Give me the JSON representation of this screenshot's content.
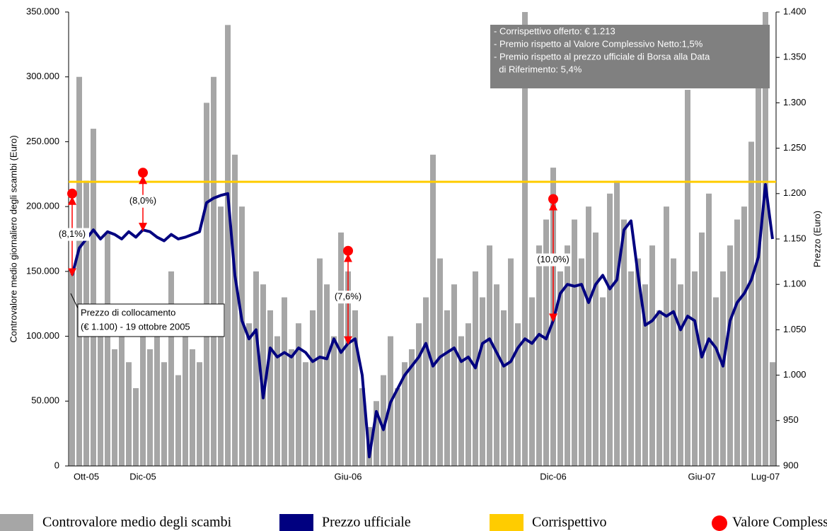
{
  "chart_data": {
    "type": "bar_line",
    "ylabel": "Controvalore medio giornaliero degli scambi (Euro)",
    "y2label": "Prezzo (Euro)",
    "categories": [
      null,
      null,
      "Ott-05",
      null,
      null,
      null,
      null,
      null,
      null,
      null,
      "Dic-05",
      null,
      null,
      null,
      null,
      null,
      null,
      null,
      null,
      null,
      null,
      null,
      null,
      null,
      null,
      null,
      null,
      null,
      null,
      null,
      null,
      null,
      null,
      null,
      null,
      null,
      null,
      null,
      null,
      "Giu-06",
      null,
      null,
      null,
      null,
      null,
      null,
      null,
      null,
      null,
      null,
      null,
      null,
      null,
      null,
      null,
      null,
      null,
      null,
      null,
      null,
      null,
      null,
      null,
      null,
      null,
      null,
      null,
      null,
      "Dic-06",
      null,
      null,
      null,
      null,
      null,
      null,
      null,
      null,
      null,
      null,
      null,
      null,
      null,
      null,
      null,
      null,
      null,
      null,
      null,
      null,
      "Giu-07",
      null,
      null,
      null,
      null,
      null,
      null,
      null,
      null,
      "Lug-07",
      null
    ],
    "series": [
      {
        "name": "Controvalore medio degli scambi",
        "color": "#a6a6a6",
        "kind": "bar",
        "values": [
          150000,
          300000,
          220000,
          260000,
          120000,
          180000,
          90000,
          100000,
          80000,
          60000,
          120000,
          90000,
          100000,
          80000,
          150000,
          70000,
          110000,
          90000,
          80000,
          280000,
          300000,
          200000,
          340000,
          240000,
          200000,
          110000,
          150000,
          140000,
          120000,
          100000,
          130000,
          90000,
          110000,
          80000,
          120000,
          160000,
          140000,
          100000,
          180000,
          150000,
          120000,
          60000,
          30000,
          50000,
          70000,
          100000,
          60000,
          80000,
          90000,
          110000,
          130000,
          240000,
          160000,
          120000,
          140000,
          100000,
          110000,
          150000,
          130000,
          170000,
          140000,
          120000,
          160000,
          110000,
          350000,
          130000,
          170000,
          190000,
          230000,
          150000,
          170000,
          190000,
          160000,
          200000,
          180000,
          130000,
          210000,
          220000,
          190000,
          150000,
          160000,
          140000,
          170000,
          120000,
          200000,
          160000,
          140000,
          290000,
          150000,
          180000,
          210000,
          130000,
          150000,
          170000,
          190000,
          200000,
          250000,
          300000,
          350000,
          80000
        ]
      },
      {
        "name": "Prezzo ufficiale",
        "color": "#000080",
        "kind": "line",
        "axis": "y2",
        "values": [
          1110,
          1140,
          1150,
          1160,
          1150,
          1158,
          1155,
          1150,
          1158,
          1152,
          1160,
          1158,
          1152,
          1148,
          1155,
          1150,
          1152,
          1155,
          1158,
          1190,
          1195,
          1198,
          1200,
          1110,
          1060,
          1040,
          1050,
          975,
          1030,
          1020,
          1025,
          1020,
          1030,
          1025,
          1015,
          1020,
          1018,
          1040,
          1025,
          1035,
          1040,
          1000,
          910,
          960,
          940,
          970,
          985,
          1000,
          1010,
          1020,
          1035,
          1010,
          1020,
          1025,
          1030,
          1015,
          1020,
          1008,
          1035,
          1040,
          1025,
          1010,
          1015,
          1030,
          1040,
          1035,
          1045,
          1040,
          1060,
          1090,
          1100,
          1098,
          1100,
          1080,
          1100,
          1110,
          1095,
          1105,
          1160,
          1170,
          1110,
          1055,
          1060,
          1070,
          1065,
          1070,
          1050,
          1065,
          1060,
          1020,
          1040,
          1030,
          1010,
          1060,
          1080,
          1090,
          1105,
          1130,
          1210,
          1150
        ]
      },
      {
        "name": "Corrispettivo",
        "color": "#ffcc00",
        "kind": "hline",
        "axis": "y2",
        "value": 1213
      }
    ],
    "vcn": {
      "name": "Valore Complessivo Netto",
      "color": "#ff0000",
      "axis": "y2",
      "points": [
        {
          "index": 0,
          "value": 1200,
          "label": "(8,1%)"
        },
        {
          "index": 10,
          "value": 1223,
          "label": "(8,0%)"
        },
        {
          "index": 39,
          "value": 1137,
          "label": "(7,6%)"
        },
        {
          "index": 68,
          "value": 1194,
          "label": "(10,0%)"
        }
      ]
    },
    "ylim": [
      0,
      350000
    ],
    "yticks": [
      0,
      {
        "value": 50000,
        "label": "50.000"
      },
      {
        "value": 100000,
        "label": "100.000"
      },
      {
        "value": 150000,
        "label": "150.000"
      },
      {
        "value": 200000,
        "label": "200.000"
      },
      {
        "value": 250000,
        "label": "250.000"
      },
      {
        "value": 300000,
        "label": "300.000"
      },
      {
        "value": 350000,
        "label": "350.000"
      }
    ],
    "y2lim": [
      900,
      1400
    ],
    "y2ticks": [
      900,
      950,
      {
        "value": 1000,
        "label": "1.000"
      },
      {
        "value": 1050,
        "label": "1.050"
      },
      {
        "value": 1100,
        "label": "1.100"
      },
      {
        "value": 1150,
        "label": "1.150"
      },
      {
        "value": 1200,
        "label": "1.200"
      },
      {
        "value": 1250,
        "label": "1.250"
      },
      {
        "value": 1300,
        "label": "1.300"
      },
      {
        "value": 1350,
        "label": "1.350"
      },
      {
        "value": 1400,
        "label": "1.400"
      }
    ],
    "info_box": [
      "- Corrispettivo offerto: € 1.213",
      "- Premio rispetto al Valore Complessivo Netto:1,5%",
      "- Premio rispetto al prezzo ufficiale di Borsa alla Data",
      "  di Riferimento: 5,4%"
    ],
    "placement_note": [
      "Prezzo di collocamento",
      "(€ 1.100) - 19 ottobre 2005"
    ]
  }
}
